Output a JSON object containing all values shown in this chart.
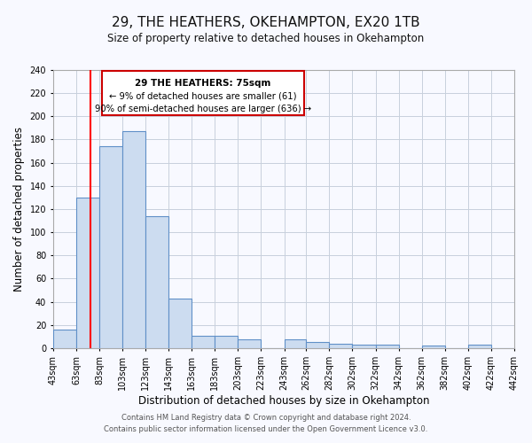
{
  "title": "29, THE HEATHERS, OKEHAMPTON, EX20 1TB",
  "subtitle": "Size of property relative to detached houses in Okehampton",
  "xlabel": "Distribution of detached houses by size in Okehampton",
  "ylabel": "Number of detached properties",
  "footer_line1": "Contains HM Land Registry data © Crown copyright and database right 2024.",
  "footer_line2": "Contains public sector information licensed under the Open Government Licence v3.0.",
  "bin_edges": [
    43,
    63,
    83,
    103,
    123,
    143,
    163,
    183,
    203,
    223,
    243,
    262,
    282,
    302,
    322,
    342,
    362,
    382,
    402,
    422,
    442
  ],
  "bin_labels": [
    "43sqm",
    "63sqm",
    "83sqm",
    "103sqm",
    "123sqm",
    "143sqm",
    "163sqm",
    "183sqm",
    "203sqm",
    "223sqm",
    "243sqm",
    "262sqm",
    "282sqm",
    "302sqm",
    "322sqm",
    "342sqm",
    "362sqm",
    "382sqm",
    "402sqm",
    "422sqm",
    "442sqm"
  ],
  "counts": [
    16,
    130,
    174,
    187,
    114,
    43,
    11,
    11,
    8,
    0,
    8,
    5,
    4,
    3,
    3,
    0,
    2,
    0,
    3,
    0
  ],
  "bar_facecolor": "#ccdcf0",
  "bar_edgecolor": "#6090c8",
  "grid_color": "#c8d0dc",
  "background_color": "#f8f9ff",
  "red_line_x": 75,
  "annotation_title": "29 THE HEATHERS: 75sqm",
  "annotation_line1": "← 9% of detached houses are smaller (61)",
  "annotation_line2": "90% of semi-detached houses are larger (636) →",
  "annotation_box_color": "#ffffff",
  "annotation_border_color": "#cc0000",
  "ylim": [
    0,
    240
  ],
  "yticks": [
    0,
    20,
    40,
    60,
    80,
    100,
    120,
    140,
    160,
    180,
    200,
    220,
    240
  ]
}
